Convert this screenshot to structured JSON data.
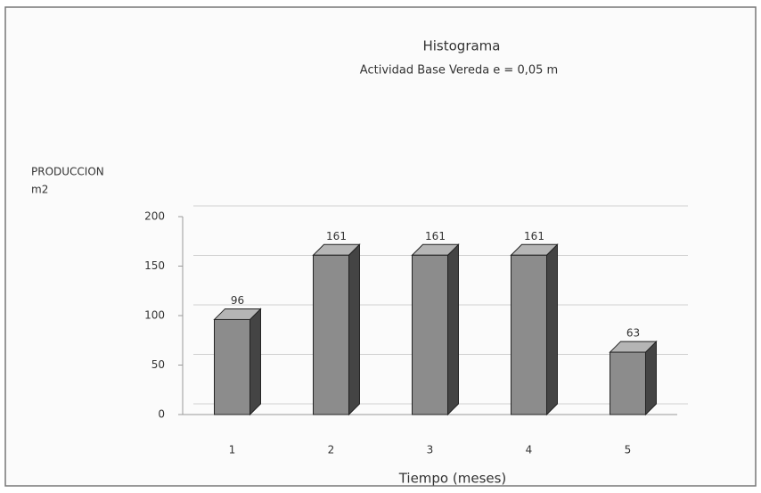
{
  "chart_data": {
    "type": "bar3d",
    "title": "Histograma",
    "subtitle": "Actividad  Base Vereda e = 0,05 m",
    "ylabel": [
      "PRODUCCION",
      "m2"
    ],
    "xlabel": "Tiempo (meses)",
    "categories": [
      "1",
      "2",
      "3",
      "4",
      "5"
    ],
    "values": [
      96,
      161,
      161,
      161,
      63
    ],
    "color": "#8c8c8c",
    "ylim": [
      0,
      200
    ],
    "yticks": [
      0,
      50,
      100,
      150,
      200
    ],
    "grid": true
  }
}
